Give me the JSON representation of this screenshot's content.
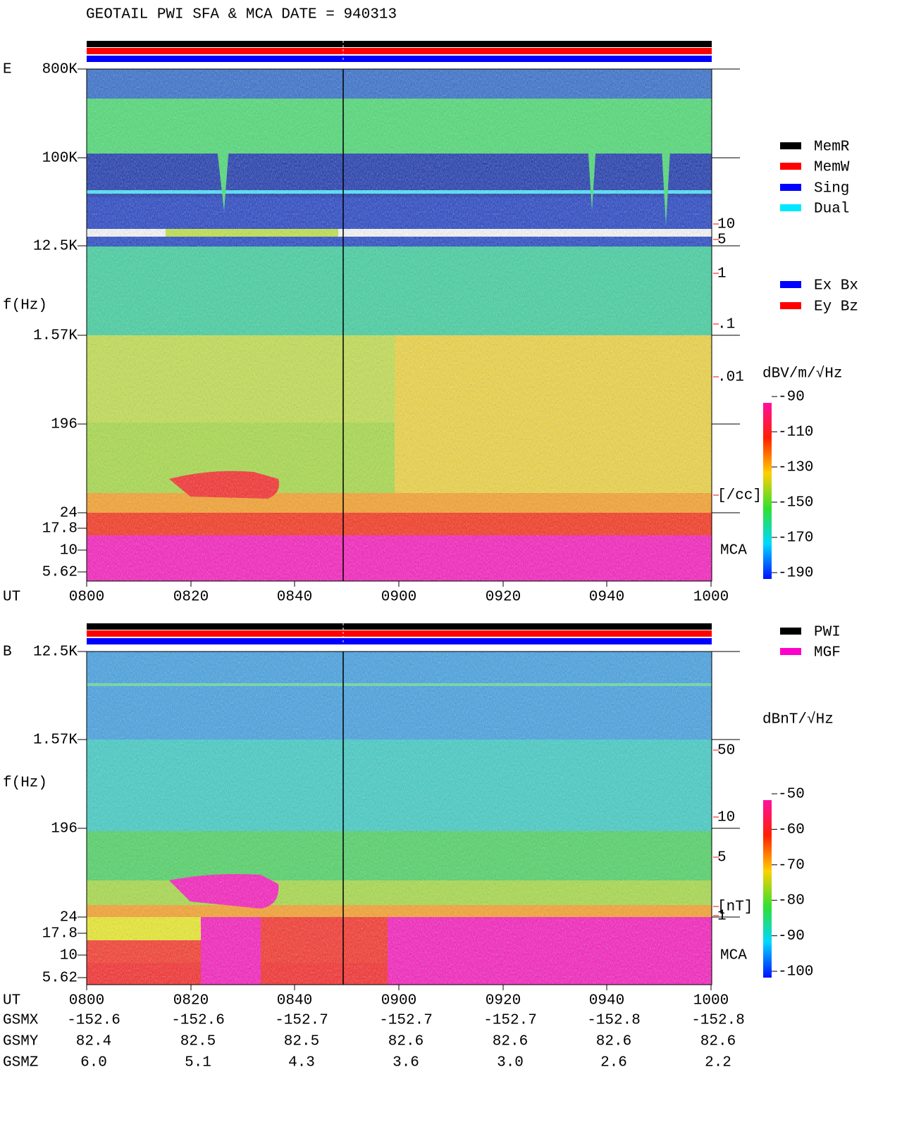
{
  "title": "GEOTAIL  PWI SFA & MCA   DATE = 940313",
  "panels": [
    {
      "label": "E",
      "y_axis_label": "f(Hz)",
      "freq_labels": [
        "800K",
        "100K",
        "12.5K",
        "1.57K",
        "196",
        "24",
        "17.8",
        "10",
        "5.62"
      ],
      "scale_labels": [
        "10",
        "5",
        "1",
        ".1",
        ".01",
        "[/cc]"
      ],
      "mca_label": "MCA",
      "legend": [
        {
          "name": "MemR",
          "color": "#000000"
        },
        {
          "name": "MemW",
          "color": "#ff0000"
        },
        {
          "name": "Sing",
          "color": "#0000ff"
        },
        {
          "name": "Dual",
          "color": "#00e8ff"
        },
        {
          "name": "Ex Bx",
          "color": "#0000ff"
        },
        {
          "name": "Ey Bz",
          "color": "#ff0000"
        }
      ],
      "colorbar_unit": "dBV/m/√Hz",
      "colorbar_labels": [
        "-90",
        "-110",
        "-130",
        "-150",
        "-170",
        "-190"
      ]
    },
    {
      "label": "B",
      "y_axis_label": "f(Hz)",
      "freq_labels": [
        "12.5K",
        "1.57K",
        "196",
        "24",
        "17.8",
        "10",
        "5.62"
      ],
      "scale_labels": [
        "50",
        "10",
        "5",
        "1",
        "[nT]"
      ],
      "mca_label": "MCA",
      "legend": [
        {
          "name": "PWI",
          "color": "#000000"
        },
        {
          "name": "MGF",
          "color": "#ff00cc"
        }
      ],
      "colorbar_unit": "dBnT/√Hz",
      "colorbar_labels": [
        "-50",
        "-60",
        "-70",
        "-80",
        "-90",
        "-100"
      ]
    }
  ],
  "time_axis": {
    "label": "UT",
    "ticks": [
      "0800",
      "0820",
      "0840",
      "0900",
      "0920",
      "0940",
      "1000"
    ]
  },
  "ephemeris": [
    {
      "name": "GSMX",
      "values": [
        "-152.6",
        "-152.6",
        "-152.7",
        "-152.7",
        "-152.7",
        "-152.8",
        "-152.8"
      ]
    },
    {
      "name": "GSMY",
      "values": [
        "82.4",
        "82.5",
        "82.5",
        "82.6",
        "82.6",
        "82.6",
        "82.6"
      ]
    },
    {
      "name": "GSMZ",
      "values": [
        "6.0",
        "5.1",
        "4.3",
        "3.6",
        "3.0",
        "2.6",
        "2.2"
      ]
    }
  ]
}
